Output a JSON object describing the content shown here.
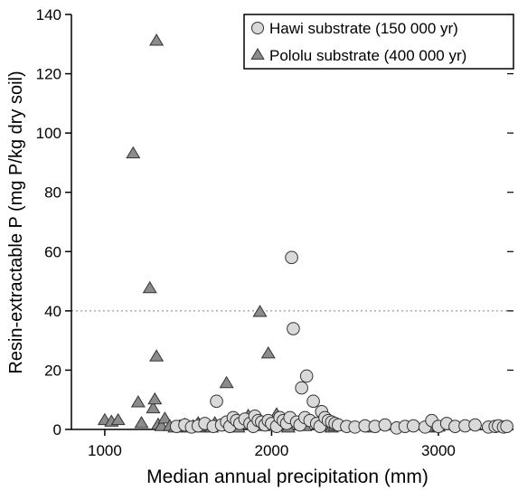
{
  "chart_data": {
    "type": "scatter",
    "xlabel": "Median annual precipitation (mm)",
    "ylabel": "Resin-extractable P (mg P/kg dry soil)",
    "xlim": [
      800,
      3450
    ],
    "ylim": [
      0,
      140
    ],
    "xticks": [
      1000,
      2000,
      3000
    ],
    "yticks": [
      0,
      20,
      40,
      60,
      80,
      100,
      120,
      140
    ],
    "grid": false,
    "legend_position": "top-right",
    "reference_line": {
      "y": 40,
      "style": "dotted"
    },
    "colors": {
      "hawi": "#d9d9d9",
      "pololu": "#8c8c8c",
      "outline": "#333333",
      "refline": "#999999"
    },
    "series": [
      {
        "name": "Hawi substrate (150 000 yr)",
        "marker": "circle",
        "points": [
          [
            1430,
            1
          ],
          [
            1480,
            1.5
          ],
          [
            1520,
            0.8
          ],
          [
            1560,
            1.2
          ],
          [
            1600,
            2
          ],
          [
            1650,
            1
          ],
          [
            1670,
            9.5
          ],
          [
            1700,
            1.5
          ],
          [
            1730,
            2.5
          ],
          [
            1750,
            1
          ],
          [
            1770,
            4
          ],
          [
            1790,
            3
          ],
          [
            1810,
            2
          ],
          [
            1840,
            3.5
          ],
          [
            1870,
            2
          ],
          [
            1890,
            1
          ],
          [
            1900,
            4.5
          ],
          [
            1920,
            3
          ],
          [
            1940,
            2.5
          ],
          [
            1960,
            1.5
          ],
          [
            1980,
            3
          ],
          [
            2000,
            2
          ],
          [
            2030,
            1
          ],
          [
            2050,
            4
          ],
          [
            2070,
            3
          ],
          [
            2090,
            2
          ],
          [
            2110,
            4
          ],
          [
            2120,
            58
          ],
          [
            2130,
            34
          ],
          [
            2150,
            2.5
          ],
          [
            2170,
            1.5
          ],
          [
            2180,
            14
          ],
          [
            2200,
            4
          ],
          [
            2210,
            18
          ],
          [
            2230,
            3
          ],
          [
            2250,
            9.5
          ],
          [
            2270,
            2
          ],
          [
            2290,
            1
          ],
          [
            2300,
            6
          ],
          [
            2320,
            4
          ],
          [
            2340,
            3
          ],
          [
            2360,
            2.5
          ],
          [
            2380,
            2
          ],
          [
            2400,
            1.5
          ],
          [
            2450,
            1
          ],
          [
            2500,
            0.8
          ],
          [
            2560,
            1.2
          ],
          [
            2620,
            1
          ],
          [
            2680,
            1.5
          ],
          [
            2750,
            0.5
          ],
          [
            2800,
            1
          ],
          [
            2850,
            1.2
          ],
          [
            2920,
            0.8
          ],
          [
            2960,
            3
          ],
          [
            3000,
            1
          ],
          [
            3050,
            2
          ],
          [
            3100,
            1
          ],
          [
            3160,
            1.2
          ],
          [
            3220,
            1.5
          ],
          [
            3300,
            0.8
          ],
          [
            3340,
            1
          ],
          [
            3360,
            1.2
          ],
          [
            3390,
            0.8
          ],
          [
            3410,
            1
          ]
        ]
      },
      {
        "name": "Pololu substrate (400 000 yr)",
        "marker": "triangle",
        "points": [
          [
            1000,
            3
          ],
          [
            1040,
            2.5
          ],
          [
            1080,
            3
          ],
          [
            1170,
            93
          ],
          [
            1200,
            9
          ],
          [
            1220,
            2
          ],
          [
            1270,
            47.5
          ],
          [
            1290,
            7
          ],
          [
            1300,
            10
          ],
          [
            1310,
            24.5
          ],
          [
            1310,
            131
          ],
          [
            1320,
            1.5
          ],
          [
            1340,
            1
          ],
          [
            1360,
            3.5
          ],
          [
            1390,
            1
          ],
          [
            1420,
            0.5
          ],
          [
            1450,
            1
          ],
          [
            1480,
            1.5
          ],
          [
            1500,
            0.5
          ],
          [
            1530,
            1
          ],
          [
            1560,
            2
          ],
          [
            1580,
            0.5
          ],
          [
            1600,
            1
          ],
          [
            1640,
            0.5
          ],
          [
            1660,
            2
          ],
          [
            1690,
            1
          ],
          [
            1720,
            1.5
          ],
          [
            1730,
            15.5
          ],
          [
            1760,
            1
          ],
          [
            1800,
            0.5
          ],
          [
            1830,
            2
          ],
          [
            1860,
            4.5
          ],
          [
            1900,
            1.5
          ],
          [
            1930,
            39.5
          ],
          [
            1950,
            1
          ],
          [
            1980,
            25.5
          ],
          [
            2000,
            1.5
          ],
          [
            2030,
            5
          ],
          [
            2060,
            1
          ],
          [
            2100,
            0.5
          ],
          [
            2200,
            1
          ],
          [
            2300,
            1.5
          ],
          [
            2340,
            1
          ],
          [
            2360,
            0.5
          ],
          [
            2380,
            1
          ],
          [
            2600,
            0.5
          ],
          [
            2980,
            0.5
          ],
          [
            3000,
            0.8
          ]
        ]
      }
    ]
  }
}
